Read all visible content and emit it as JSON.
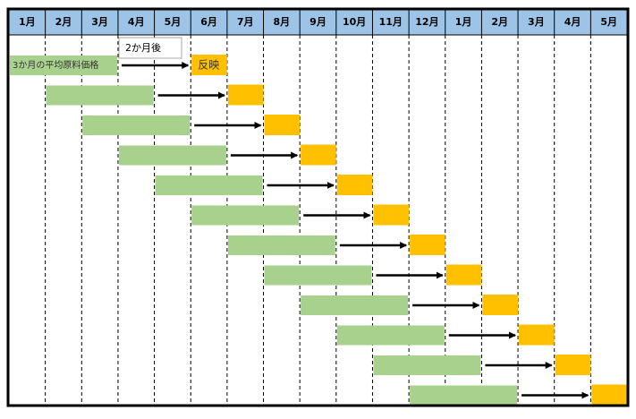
{
  "header": {
    "months": [
      "1月",
      "2月",
      "3月",
      "4月",
      "5月",
      "6月",
      "7月",
      "8月",
      "9月",
      "10月",
      "11月",
      "12月",
      "1月",
      "2月",
      "3月",
      "4月",
      "5月"
    ]
  },
  "annotations": {
    "average_label": "3か月の平均原料価格",
    "delay_label": "2か月後",
    "reflect_label": "反映"
  }
}
